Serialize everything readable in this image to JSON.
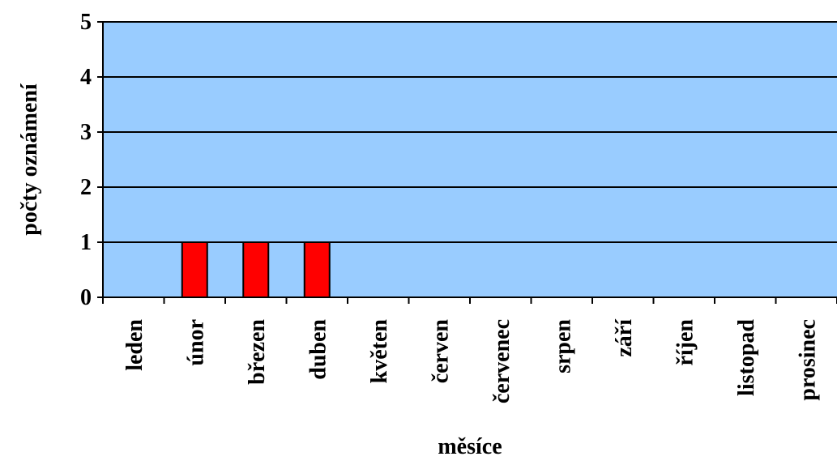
{
  "chart_data": {
    "type": "bar",
    "categories": [
      "leden",
      "únor",
      "březen",
      "duben",
      "květen",
      "červen",
      "červenec",
      "srpen",
      "září",
      "říjen",
      "listopad",
      "prosinec"
    ],
    "values": [
      0,
      1,
      1,
      1,
      0,
      0,
      0,
      0,
      0,
      0,
      0,
      0
    ],
    "xlabel": "měsíce",
    "ylabel": "počty oznámení",
    "ylim": [
      0,
      5
    ],
    "yticks": [
      "0",
      "1",
      "2",
      "3",
      "4",
      "5"
    ],
    "grid": true,
    "legend": "none",
    "colors": {
      "plot_background": "#99CCFF",
      "bar": "#FF0000",
      "bar_edge": "#000000",
      "grid": "#000000"
    }
  }
}
